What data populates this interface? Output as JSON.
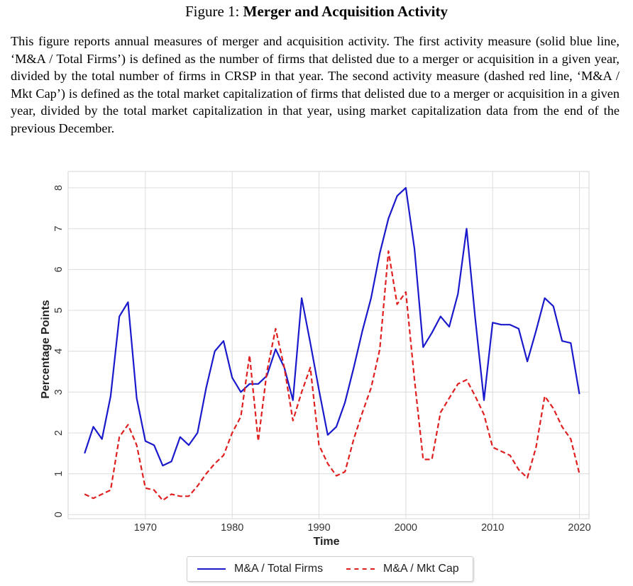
{
  "figure": {
    "label": "Figure 1:",
    "title": "Merger and Acquisition Activity",
    "caption": "This figure reports annual measures of merger and acquisition activity. The first activity measure (solid blue line, ‘M&A / Total Firms’) is defined as the number of firms that delisted due to a merger or acquisition in a given year, divided by the total number of firms in CRSP in that year. The second activity measure (dashed red line, ‘M&A / Mkt Cap’) is defined as the total market capitalization of firms that delisted due to a merger or acquisition in a given year, divided by the total market capitalization in that year, using market capitalization data from the end of the previous December."
  },
  "chart_data": {
    "type": "line",
    "xlabel": "Time",
    "ylabel": "Percentage Points",
    "xlim": [
      1961.1,
      2021.1
    ],
    "ylim": [
      -0.1,
      8.4
    ],
    "xticks": [
      1970,
      1980,
      1990,
      2000,
      2010,
      2020
    ],
    "yticks": [
      0,
      1,
      2,
      3,
      4,
      5,
      6,
      7,
      8
    ],
    "grid": true,
    "legend_position": "bottom-center",
    "x": [
      1963,
      1964,
      1965,
      1966,
      1967,
      1968,
      1969,
      1970,
      1971,
      1972,
      1973,
      1974,
      1975,
      1976,
      1977,
      1978,
      1979,
      1980,
      1981,
      1982,
      1983,
      1984,
      1985,
      1986,
      1987,
      1988,
      1989,
      1990,
      1991,
      1992,
      1993,
      1994,
      1995,
      1996,
      1997,
      1998,
      1999,
      2000,
      2001,
      2002,
      2003,
      2004,
      2005,
      2006,
      2007,
      2008,
      2009,
      2010,
      2011,
      2012,
      2013,
      2014,
      2015,
      2016,
      2017,
      2018,
      2019,
      2020
    ],
    "series": [
      {
        "name": "M&A / Total Firms",
        "color": "#1a1acc",
        "style": "solid",
        "values": [
          1.5,
          2.15,
          1.85,
          2.9,
          4.85,
          5.2,
          2.85,
          1.8,
          1.7,
          1.2,
          1.3,
          1.9,
          1.7,
          2.0,
          3.1,
          4.0,
          4.25,
          3.35,
          3.0,
          3.2,
          3.2,
          3.4,
          4.05,
          3.6,
          2.8,
          5.3,
          4.2,
          3.05,
          1.95,
          2.15,
          2.75,
          3.6,
          4.5,
          5.3,
          6.4,
          7.25,
          7.8,
          8.0,
          6.5,
          4.1,
          4.45,
          4.85,
          4.6,
          5.4,
          7.0,
          4.8,
          2.8,
          4.7,
          4.65,
          4.65,
          4.55,
          3.75,
          4.5,
          5.3,
          5.1,
          4.25,
          4.2,
          2.95
        ]
      },
      {
        "name": "M&A / Mkt Cap",
        "color": "#e02020",
        "style": "dashed",
        "values": [
          0.5,
          0.4,
          0.5,
          0.6,
          1.9,
          2.2,
          1.7,
          0.65,
          0.6,
          0.35,
          0.5,
          0.45,
          0.45,
          0.7,
          1.0,
          1.25,
          1.45,
          2.0,
          2.4,
          3.9,
          1.8,
          3.5,
          4.55,
          3.6,
          2.3,
          3.0,
          3.6,
          1.7,
          1.25,
          0.95,
          1.05,
          1.85,
          2.5,
          3.1,
          4.05,
          6.45,
          5.15,
          5.45,
          3.3,
          1.35,
          1.35,
          2.5,
          2.85,
          3.2,
          3.3,
          2.9,
          2.45,
          1.65,
          1.55,
          1.45,
          1.1,
          0.9,
          1.65,
          2.9,
          2.6,
          2.15,
          1.85,
          1.0
        ]
      }
    ]
  }
}
